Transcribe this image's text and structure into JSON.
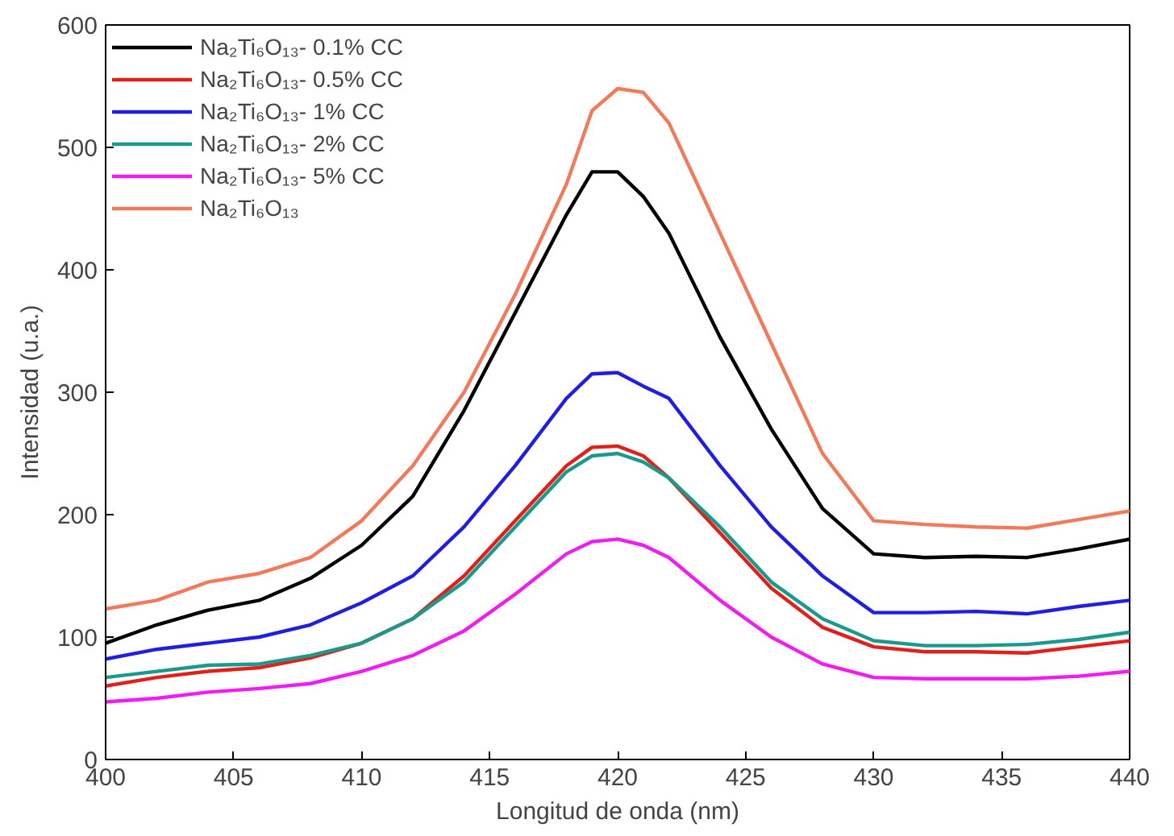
{
  "chart_data": {
    "type": "line",
    "xlabel": "Longitud de onda (nm)",
    "ylabel": "Intensidad (u.a.)",
    "x": [
      400,
      402,
      404,
      406,
      408,
      410,
      412,
      414,
      416,
      418,
      419,
      420,
      421,
      422,
      424,
      426,
      428,
      430,
      432,
      434,
      436,
      438,
      440
    ],
    "xlim": [
      400,
      440
    ],
    "xticks": [
      400,
      405,
      410,
      415,
      420,
      425,
      430,
      435,
      440
    ],
    "ylim": [
      0,
      600
    ],
    "yticks": [
      0,
      100,
      200,
      300,
      400,
      500,
      600
    ],
    "grid": false,
    "legend": "top left",
    "marker": "none",
    "line_style": "solid",
    "series": [
      {
        "name": "Na₂Ti₆O₁₃- 0.1% CC",
        "color": "#000000",
        "values": [
          95,
          110,
          122,
          130,
          148,
          175,
          215,
          285,
          365,
          445,
          480,
          480,
          460,
          430,
          345,
          270,
          205,
          168,
          165,
          166,
          165,
          172,
          180
        ]
      },
      {
        "name": "Na₂Ti₆O₁₃- 0.5% CC",
        "color": "#e0201b",
        "values": [
          60,
          67,
          72,
          75,
          83,
          95,
          115,
          150,
          195,
          240,
          255,
          256,
          248,
          230,
          185,
          140,
          108,
          92,
          88,
          88,
          87,
          92,
          97
        ]
      },
      {
        "name": "Na₂Ti₆O₁₃- 1% CC",
        "color": "#1f1fe0",
        "values": [
          82,
          90,
          95,
          100,
          110,
          128,
          150,
          190,
          240,
          295,
          315,
          316,
          305,
          295,
          240,
          190,
          150,
          120,
          120,
          121,
          119,
          125,
          130
        ]
      },
      {
        "name": "Na₂Ti₆O₁₃- 2% CC",
        "color": "#1a9a8c",
        "values": [
          67,
          72,
          77,
          78,
          85,
          95,
          115,
          145,
          190,
          235,
          248,
          250,
          243,
          230,
          190,
          145,
          115,
          97,
          93,
          93,
          94,
          98,
          104
        ]
      },
      {
        "name": "Na₂Ti₆O₁₃- 5% CC",
        "color": "#f01cf0",
        "values": [
          47,
          50,
          55,
          58,
          62,
          72,
          85,
          105,
          135,
          168,
          178,
          180,
          175,
          165,
          130,
          100,
          78,
          67,
          66,
          66,
          66,
          68,
          72
        ]
      },
      {
        "name": "Na₂Ti₆O₁₃",
        "color": "#f07a5a",
        "values": [
          123,
          130,
          145,
          152,
          165,
          195,
          240,
          300,
          380,
          470,
          530,
          548,
          545,
          520,
          430,
          340,
          250,
          195,
          192,
          190,
          189,
          196,
          203
        ]
      }
    ]
  }
}
